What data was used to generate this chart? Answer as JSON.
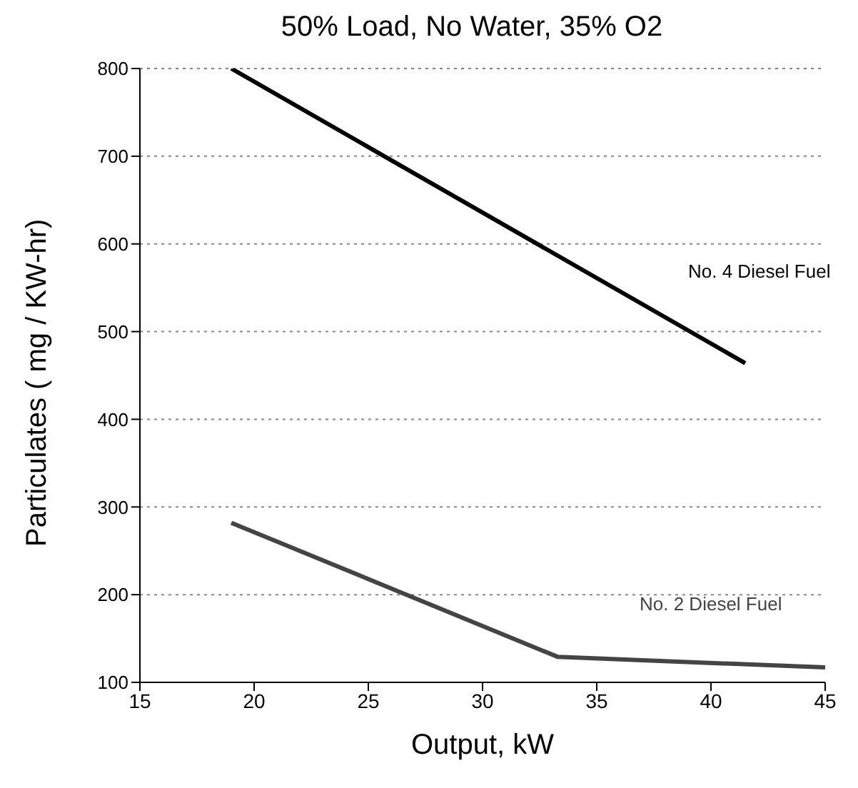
{
  "chart_data": {
    "type": "line",
    "title": "50% Load, No Water, 35% O2",
    "xlabel": "Output, kW",
    "ylabel": "Particulates  ( mg / KW-hr)",
    "xlim": [
      15,
      45
    ],
    "xticks": [
      15,
      20,
      25,
      30,
      35,
      40,
      45
    ],
    "ylim": [
      100,
      800
    ],
    "yticks": [
      100,
      200,
      300,
      400,
      500,
      600,
      700,
      800
    ],
    "grid": "y",
    "marker": "none",
    "line_style": "solid",
    "legend": false,
    "series": [
      {
        "name": "No. 4 Diesel Fuel",
        "color": "#000000",
        "x": [
          19,
          41.5
        ],
        "values": [
          800,
          464
        ]
      },
      {
        "name": "No. 2 Diesel Fuel",
        "color": "#444444",
        "x": [
          19,
          33.3,
          45
        ],
        "values": [
          282,
          129,
          117
        ]
      }
    ]
  }
}
